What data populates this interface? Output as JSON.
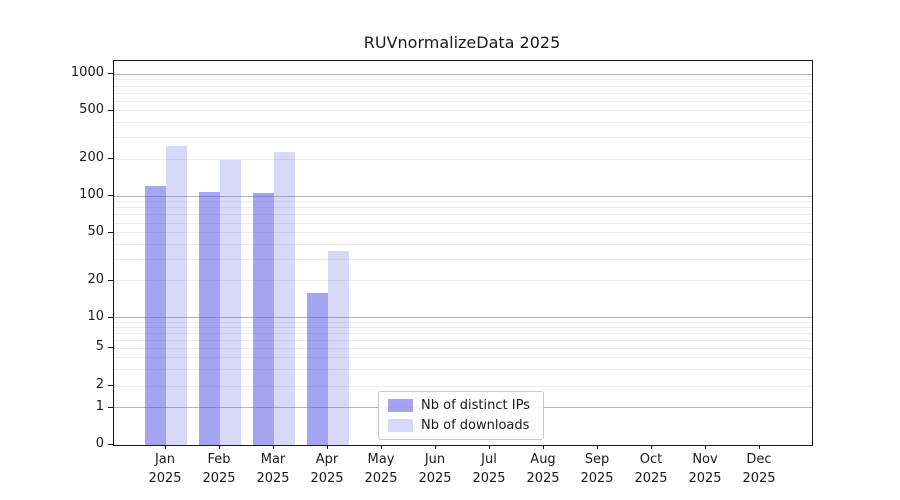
{
  "chart_data": {
    "type": "bar",
    "title": "RUVnormalizeData 2025",
    "categories": [
      "Jan 2025",
      "Feb 2025",
      "Mar 2025",
      "Apr 2025",
      "May 2025",
      "Jun 2025",
      "Jul 2025",
      "Aug 2025",
      "Sep 2025",
      "Oct 2025",
      "Nov 2025",
      "Dec 2025"
    ],
    "series": [
      {
        "name": "Nb of distinct IPs",
        "color": "rgba(90,90,230,0.55)",
        "values": [
          120,
          108,
          106,
          16,
          0,
          0,
          0,
          0,
          0,
          0,
          0,
          0
        ]
      },
      {
        "name": "Nb of downloads",
        "color": "rgba(90,90,230,0.24)",
        "values": [
          258,
          198,
          230,
          35,
          0,
          0,
          0,
          0,
          0,
          0,
          0,
          0
        ]
      }
    ],
    "y_axis": {
      "scale": "log-like",
      "ticks": [
        0,
        1,
        2,
        5,
        10,
        20,
        50,
        100,
        200,
        500,
        1000
      ],
      "top_value": 1270
    },
    "grid": {
      "major_at": [
        1,
        10,
        100,
        1000
      ],
      "major_color": "#b6b6b6",
      "minor_color": "#ececec",
      "minor_per_decade": [
        2,
        3,
        4,
        5,
        6,
        7,
        8,
        9
      ]
    },
    "legend": {
      "items": [
        "Nb of distinct IPs",
        "Nb of downloads"
      ]
    }
  }
}
